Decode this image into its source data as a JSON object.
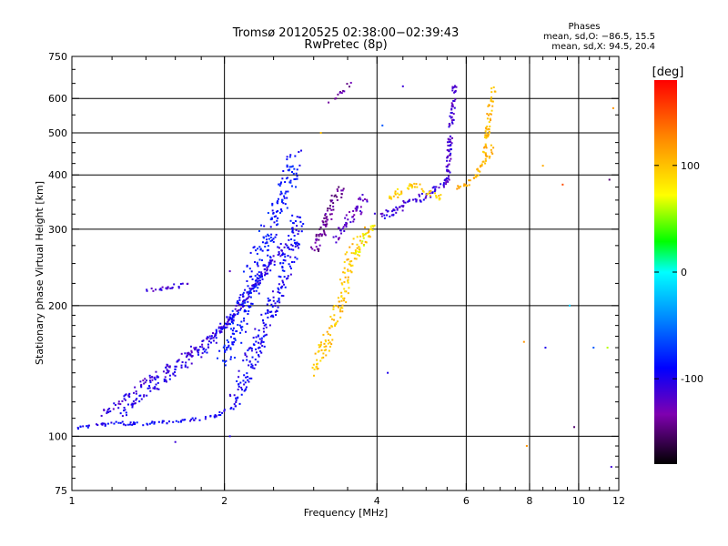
{
  "chart_data": {
    "type": "scatter",
    "title": "Tromsø 20120525 02:38:00−02:39:43",
    "subtitle": "RwPretec (8p)",
    "xlabel": "Frequency [MHz]",
    "ylabel": "Stationary phase Virtual Height [km]",
    "x_scale": "log",
    "y_scale": "log",
    "xlim": [
      1,
      12
    ],
    "ylim": [
      75,
      750
    ],
    "x_ticks": [
      {
        "value": 1,
        "label": "1"
      },
      {
        "value": 2,
        "label": "2"
      },
      {
        "value": 4,
        "label": "4"
      },
      {
        "value": 6,
        "label": "6"
      },
      {
        "value": 8,
        "label": "8"
      },
      {
        "value": 10,
        "label": "10"
      },
      {
        "value": 12,
        "label": "12"
      }
    ],
    "y_ticks": [
      {
        "value": 75,
        "label": "75"
      },
      {
        "value": 100,
        "label": "100"
      },
      {
        "value": 200,
        "label": "200"
      },
      {
        "value": 300,
        "label": "300"
      },
      {
        "value": 400,
        "label": "400"
      },
      {
        "value": 500,
        "label": "500"
      },
      {
        "value": 600,
        "label": "600"
      },
      {
        "value": 750,
        "label": "750"
      }
    ],
    "x_grid": [
      2,
      4,
      6,
      8,
      10
    ],
    "y_grid": [
      100,
      200,
      300,
      400,
      500,
      600
    ],
    "grid": true,
    "phase_info": {
      "heading": "Phases",
      "line_o": "mean, sd,O: −86.5, 15.5",
      "line_x": "mean, sd,X:  94.5, 20.4"
    },
    "colorbar": {
      "label": "[deg]",
      "range": [
        -180,
        180
      ],
      "ticks": [
        {
          "value": 100,
          "label": "100"
        },
        {
          "value": 0,
          "label": "0"
        },
        {
          "value": -100,
          "label": "-100"
        }
      ]
    },
    "traces": [
      {
        "phase": -95,
        "width": 0.015,
        "density": 3,
        "points": [
          [
            1.02,
            104
          ],
          [
            1.1,
            106
          ],
          [
            1.2,
            107
          ],
          [
            1.4,
            107
          ],
          [
            1.6,
            108
          ],
          [
            1.8,
            110
          ],
          [
            1.95,
            112
          ],
          [
            2.1,
            117
          ]
        ]
      },
      {
        "phase": -110,
        "width": 0.03,
        "density": 4,
        "points": [
          [
            1.15,
            112
          ],
          [
            1.3,
            125
          ],
          [
            1.5,
            140
          ],
          [
            1.7,
            155
          ],
          [
            1.9,
            170
          ],
          [
            2.05,
            185
          ],
          [
            2.2,
            205
          ],
          [
            2.35,
            230
          ],
          [
            2.5,
            260
          ]
        ]
      },
      {
        "phase": -100,
        "width": 0.035,
        "density": 4,
        "points": [
          [
            1.25,
            112
          ],
          [
            1.45,
            130
          ],
          [
            1.65,
            145
          ],
          [
            1.85,
            160
          ],
          [
            2.0,
            180
          ],
          [
            2.15,
            200
          ],
          [
            2.3,
            225
          ],
          [
            2.5,
            255
          ],
          [
            2.65,
            280
          ]
        ]
      },
      {
        "phase": -85,
        "width": 0.08,
        "density": 6,
        "points": [
          [
            2.0,
            150
          ],
          [
            2.15,
            190
          ],
          [
            2.3,
            240
          ],
          [
            2.4,
            280
          ],
          [
            2.55,
            330
          ],
          [
            2.7,
            400
          ],
          [
            2.75,
            440
          ]
        ]
      },
      {
        "phase": -95,
        "width": 0.06,
        "density": 6,
        "points": [
          [
            2.1,
            120
          ],
          [
            2.25,
            150
          ],
          [
            2.45,
            190
          ],
          [
            2.6,
            230
          ],
          [
            2.75,
            280
          ],
          [
            2.8,
            320
          ]
        ]
      },
      {
        "phase": -115,
        "width": 0.02,
        "density": 3,
        "points": [
          [
            1.4,
            215
          ],
          [
            1.55,
            220
          ],
          [
            1.7,
            225
          ]
        ]
      },
      {
        "phase": -140,
        "width": 0.04,
        "density": 6,
        "points": [
          [
            3.0,
            270
          ],
          [
            3.1,
            290
          ],
          [
            3.2,
            320
          ],
          [
            3.3,
            350
          ],
          [
            3.4,
            370
          ]
        ]
      },
      {
        "phase": -120,
        "width": 0.04,
        "density": 5,
        "points": [
          [
            3.3,
            285
          ],
          [
            3.5,
            310
          ],
          [
            3.7,
            340
          ],
          [
            3.8,
            360
          ]
        ]
      },
      {
        "phase": -135,
        "width": 0.02,
        "density": 2,
        "points": [
          [
            3.2,
            580
          ],
          [
            3.4,
            620
          ],
          [
            3.55,
            650
          ]
        ]
      },
      {
        "phase": 100,
        "width": 0.05,
        "density": 5,
        "points": [
          [
            3.0,
            140
          ],
          [
            3.15,
            160
          ],
          [
            3.3,
            185
          ],
          [
            3.45,
            220
          ],
          [
            3.55,
            255
          ],
          [
            3.7,
            285
          ],
          [
            3.85,
            300
          ]
        ]
      },
      {
        "phase": 75,
        "width": 0.03,
        "density": 3,
        "points": [
          [
            3.65,
            260
          ],
          [
            3.8,
            290
          ],
          [
            4.0,
            310
          ]
        ]
      },
      {
        "phase": -110,
        "width": 0.03,
        "density": 5,
        "points": [
          [
            4.0,
            320
          ],
          [
            4.3,
            330
          ],
          [
            4.6,
            345
          ],
          [
            4.9,
            355
          ],
          [
            5.2,
            370
          ],
          [
            5.5,
            390
          ]
        ]
      },
      {
        "phase": 95,
        "width": 0.025,
        "density": 4,
        "points": [
          [
            4.2,
            350
          ],
          [
            4.5,
            370
          ],
          [
            4.8,
            380
          ],
          [
            5.1,
            360
          ],
          [
            5.4,
            355
          ]
        ]
      },
      {
        "phase": -115,
        "width": 0.02,
        "density": 5,
        "points": [
          [
            5.5,
            380
          ],
          [
            5.55,
            450
          ],
          [
            5.6,
            520
          ],
          [
            5.65,
            580
          ],
          [
            5.7,
            650
          ]
        ]
      },
      {
        "phase": 105,
        "width": 0.02,
        "density": 4,
        "points": [
          [
            5.7,
            370
          ],
          [
            6.0,
            380
          ],
          [
            6.3,
            400
          ],
          [
            6.5,
            430
          ],
          [
            6.6,
            500
          ],
          [
            6.7,
            580
          ],
          [
            6.8,
            630
          ]
        ]
      },
      {
        "phase": 115,
        "width": 0.02,
        "density": 3,
        "points": [
          [
            6.5,
            430
          ],
          [
            6.7,
            450
          ],
          [
            6.8,
            470
          ]
        ]
      }
    ],
    "scatter_points": [
      [
        2.05,
        240,
        -120
      ],
      [
        2.4,
        180,
        -100
      ],
      [
        4.1,
        520,
        -60
      ],
      [
        4.5,
        640,
        -110
      ],
      [
        4.2,
        140,
        -100
      ],
      [
        3.1,
        500,
        100
      ],
      [
        8.5,
        420,
        110
      ],
      [
        9.3,
        380,
        150
      ],
      [
        9.6,
        200,
        -20
      ],
      [
        9.8,
        105,
        -150
      ],
      [
        10.7,
        160,
        -60
      ],
      [
        11.5,
        390,
        -150
      ],
      [
        11.6,
        85,
        -110
      ],
      [
        11.7,
        570,
        120
      ],
      [
        7.8,
        165,
        120
      ],
      [
        8.6,
        160,
        -100
      ],
      [
        11.4,
        160,
        60
      ],
      [
        2.05,
        100,
        -100
      ],
      [
        1.6,
        97,
        -110
      ],
      [
        7.9,
        95,
        120
      ]
    ]
  }
}
